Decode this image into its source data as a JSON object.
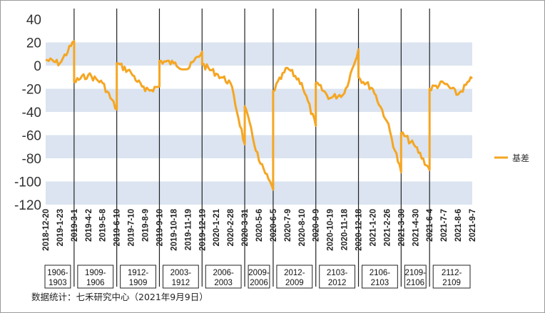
{
  "chart_data": {
    "type": "line",
    "title": "",
    "xlabel": "",
    "ylabel": "",
    "ylim": [
      -120,
      40
    ],
    "yticks": [
      40,
      20,
      0,
      -20,
      -40,
      -60,
      -80,
      -100,
      -120
    ],
    "grid": "alternating horizontal bands",
    "legend_position": "right",
    "x_tick_labels": [
      "2018-12-20",
      "2019-1-23",
      "2019-3-1",
      "2019-4-2",
      "2019-5-8",
      "2019-6-10",
      "2019-7-10",
      "2019-8-9",
      "2019-9-10",
      "2019-10-18",
      "2019-11-19",
      "2019-12-19",
      "2020-1-21",
      "2020-2-28",
      "2020-3-31",
      "2020-5-6",
      "2020-6-5",
      "2020-7-9",
      "2020-8-10",
      "2020-9-9",
      "2020-10-19",
      "2020-11-18",
      "2020-12-18",
      "2021-1-20",
      "2021-2-26",
      "2021-3-30",
      "2021-4-30",
      "2021-6-4",
      "2021-7-7",
      "2021-8-6",
      "2021-9-7"
    ],
    "contract_periods": [
      "1906-1903",
      "1909-1906",
      "1912-1909",
      "2003-1912",
      "2006-2003",
      "2009-2006",
      "2012-2009",
      "2103-2012",
      "2106-2103",
      "2109-2106",
      "2112-2109"
    ],
    "period_breaks": [
      "2019-3-1",
      "2019-6-10",
      "2019-9-10",
      "2019-12-19",
      "2020-3-31",
      "2020-6-5",
      "2020-9-9",
      "2020-12-18",
      "2021-3-30",
      "2021-6-4"
    ],
    "series": [
      {
        "name": "基差",
        "color": "#f5a623",
        "x": [
          "2018-12-20",
          "2019-1-23",
          "2019-3-1",
          "2019-3-1",
          "2019-4-2",
          "2019-5-8",
          "2019-6-10",
          "2019-6-10",
          "2019-7-10",
          "2019-8-9",
          "2019-9-10",
          "2019-9-10",
          "2019-10-18",
          "2019-11-19",
          "2019-12-19",
          "2019-12-19",
          "2020-1-21",
          "2020-2-28",
          "2020-3-31",
          "2020-3-31",
          "2020-5-6",
          "2020-6-5",
          "2020-6-5",
          "2020-7-9",
          "2020-8-10",
          "2020-9-9",
          "2020-9-9",
          "2020-10-19",
          "2020-11-18",
          "2020-12-18",
          "2020-12-18",
          "2021-1-20",
          "2021-2-26",
          "2021-3-30",
          "2021-3-30",
          "2021-4-30",
          "2021-6-4",
          "2021-6-4",
          "2021-7-7",
          "2021-8-6",
          "2021-9-7"
        ],
        "values": [
          5,
          2,
          21,
          -14,
          -8,
          -15,
          -38,
          2,
          -6,
          -22,
          -18,
          4,
          2,
          -3,
          12,
          1,
          -7,
          -15,
          -68,
          -35,
          -82,
          -107,
          -22,
          -2,
          -15,
          -52,
          -15,
          -28,
          -24,
          14,
          -10,
          -20,
          -48,
          -92,
          -58,
          -70,
          -90,
          -20,
          -15,
          -25,
          -11
        ]
      }
    ]
  },
  "source_note": "数据统计：七禾研究中心（2021年9月9日）"
}
